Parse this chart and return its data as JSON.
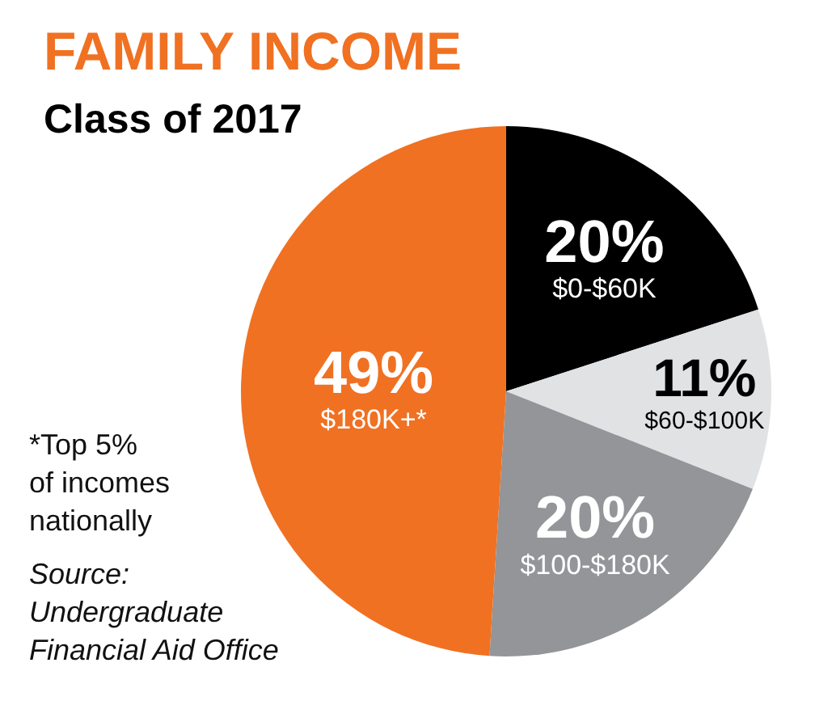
{
  "chart_data": {
    "type": "pie",
    "title": "FAMILY INCOME",
    "subtitle": "Class of 2017",
    "categories": [
      "$0-$60K",
      "$60-$100K",
      "$100-$180K",
      "$180K+*"
    ],
    "values": [
      20,
      11,
      20,
      49
    ],
    "value_labels": [
      "20%",
      "11%",
      "20%",
      "49%"
    ],
    "colors": [
      "#000000",
      "#e1e2e4",
      "#939598",
      "#f07122"
    ],
    "annotations": [
      "*Top 5% of incomes nationally",
      "Source: Undergraduate Financial Aid Office"
    ],
    "legend": false
  }
}
